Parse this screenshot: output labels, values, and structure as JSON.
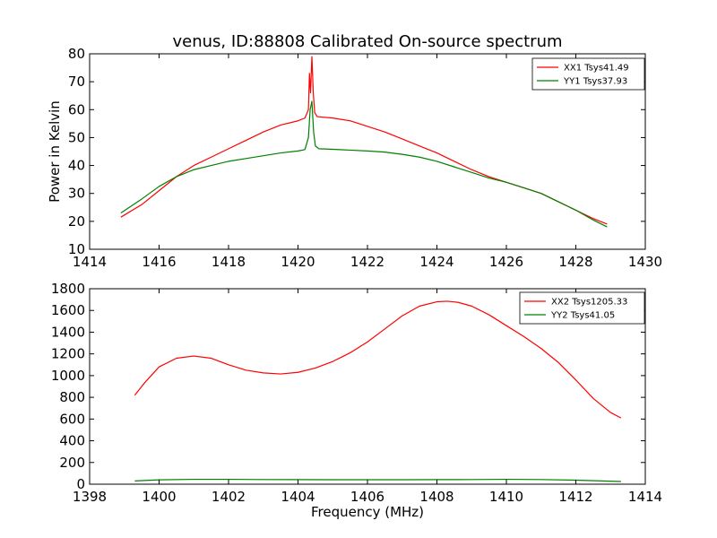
{
  "chart_data": [
    {
      "type": "line",
      "title": "venus, ID:88808 Calibrated On-source spectrum",
      "xlabel": "",
      "ylabel": "Power in Kelvin",
      "xlim": [
        1414,
        1430
      ],
      "ylim": [
        10,
        80
      ],
      "xticks": [
        "1414",
        "1416",
        "1418",
        "1420",
        "1422",
        "1424",
        "1426",
        "1428",
        "1430"
      ],
      "yticks": [
        "10",
        "20",
        "30",
        "40",
        "50",
        "60",
        "70",
        "80"
      ],
      "legend_position": "top-right",
      "series": [
        {
          "name": "XX1 Tsys41.49",
          "color": "#ff0000",
          "x": [
            1414.9,
            1415.5,
            1416.0,
            1416.5,
            1417.0,
            1417.5,
            1418.0,
            1418.5,
            1419.0,
            1419.5,
            1420.0,
            1420.2,
            1420.3,
            1420.33,
            1420.36,
            1420.4,
            1420.44,
            1420.48,
            1420.55,
            1421.0,
            1421.5,
            1422.0,
            1422.5,
            1423.0,
            1423.5,
            1424.0,
            1424.5,
            1425.0,
            1425.5,
            1426.0,
            1426.5,
            1427.0,
            1427.5,
            1428.0,
            1428.5,
            1428.9
          ],
          "y": [
            21.5,
            26,
            31,
            36,
            40,
            43,
            46,
            49,
            52,
            54.5,
            56,
            57,
            60,
            73,
            66,
            79,
            66,
            59,
            57.5,
            57,
            56,
            54,
            52,
            49.5,
            47,
            44.5,
            41.5,
            38.5,
            36,
            34,
            32,
            30,
            27,
            24,
            21,
            19
          ]
        },
        {
          "name": "YY1 Tsys37.93",
          "color": "#008000",
          "x": [
            1414.9,
            1415.5,
            1416.0,
            1416.5,
            1417.0,
            1417.5,
            1418.0,
            1418.5,
            1419.0,
            1419.5,
            1420.0,
            1420.2,
            1420.3,
            1420.35,
            1420.4,
            1420.45,
            1420.5,
            1420.6,
            1421.0,
            1421.5,
            1422.0,
            1422.5,
            1423.0,
            1423.5,
            1424.0,
            1424.5,
            1425.0,
            1425.5,
            1426.0,
            1426.5,
            1427.0,
            1427.5,
            1428.0,
            1428.5,
            1428.9
          ],
          "y": [
            23,
            28,
            32.5,
            36,
            38.5,
            40,
            41.5,
            42.5,
            43.5,
            44.5,
            45.2,
            45.7,
            50,
            60,
            63,
            52,
            47,
            46,
            45.8,
            45.5,
            45.2,
            44.8,
            44,
            43,
            41.5,
            39.5,
            37.5,
            35.5,
            34,
            32,
            30,
            27,
            24,
            20.5,
            18
          ]
        }
      ]
    },
    {
      "type": "line",
      "title": "",
      "xlabel": "Frequency (MHz)",
      "ylabel": "",
      "xlim": [
        1398,
        1414
      ],
      "ylim": [
        0,
        1800
      ],
      "xticks": [
        "1398",
        "1400",
        "1402",
        "1404",
        "1406",
        "1408",
        "1410",
        "1412",
        "1414"
      ],
      "yticks": [
        "0",
        "200",
        "400",
        "600",
        "800",
        "1000",
        "1200",
        "1400",
        "1600",
        "1800"
      ],
      "legend_position": "top-right",
      "series": [
        {
          "name": "XX2 Tsys1205.33",
          "color": "#ff0000",
          "x": [
            1399.3,
            1399.6,
            1400.0,
            1400.5,
            1401.0,
            1401.5,
            1402.0,
            1402.5,
            1403.0,
            1403.5,
            1404.0,
            1404.5,
            1405.0,
            1405.5,
            1406.0,
            1406.5,
            1407.0,
            1407.5,
            1408.0,
            1408.3,
            1408.6,
            1409.0,
            1409.5,
            1410.0,
            1410.5,
            1411.0,
            1411.5,
            1412.0,
            1412.5,
            1413.0,
            1413.3
          ],
          "y": [
            820,
            940,
            1080,
            1160,
            1180,
            1160,
            1100,
            1050,
            1025,
            1015,
            1030,
            1070,
            1130,
            1210,
            1310,
            1430,
            1550,
            1640,
            1680,
            1685,
            1675,
            1640,
            1560,
            1460,
            1360,
            1250,
            1120,
            960,
            790,
            660,
            610
          ]
        },
        {
          "name": "YY2 Tsys41.05",
          "color": "#008000",
          "x": [
            1399.3,
            1400.0,
            1401.0,
            1402.0,
            1403.0,
            1404.0,
            1405.0,
            1406.0,
            1407.0,
            1408.0,
            1409.0,
            1410.0,
            1411.0,
            1412.0,
            1413.3
          ],
          "y": [
            30,
            40,
            45,
            45,
            43,
            42,
            41,
            41,
            41,
            42,
            43,
            45,
            43,
            37,
            25
          ]
        }
      ]
    }
  ]
}
